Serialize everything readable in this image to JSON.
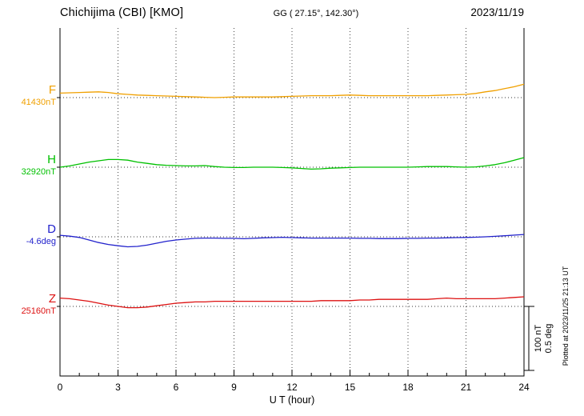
{
  "header": {
    "station": "Chichijima (CBI)  [KMO]",
    "coords": "GG ( 27.15°, 142.30°)",
    "date": "2023/11/19"
  },
  "axis": {
    "xlabel": "U T (hour)",
    "ticks": [
      0,
      3,
      6,
      9,
      12,
      15,
      18,
      21,
      24
    ],
    "xmin": 0,
    "xmax": 24
  },
  "components": [
    {
      "label": "F",
      "value_label": "41430nT",
      "color": "#f0a000",
      "unit": "nT"
    },
    {
      "label": "H",
      "value_label": "32920nT",
      "color": "#00c000",
      "unit": "nT"
    },
    {
      "label": "D",
      "value_label": "-4.6deg",
      "color": "#2222cc",
      "unit": "deg"
    },
    {
      "label": "Z",
      "value_label": "25160nT",
      "color": "#dd1111",
      "unit": "nT"
    }
  ],
  "scalebar": {
    "line1": "100 nT",
    "line2": "0.5 deg"
  },
  "plotted_at": "Plotted at 2023/11/25 21:13 UT",
  "chart_data": {
    "type": "line",
    "title": "Chichijima (CBI) [KMO] magnetogram",
    "subtitle": "GG ( 27.15°, 142.30° )  2023/11/19",
    "xlabel": "U T (hour)",
    "x_range": [
      0,
      24
    ],
    "x_step_hours": 0.5,
    "x_tick_labels": [
      0,
      3,
      6,
      9,
      12,
      15,
      18,
      21,
      24
    ],
    "grid": "vertical-dotted-every-3h, dotted baseline per component",
    "scale_per_division": {
      "nT": 100,
      "deg": 0.5
    },
    "series": [
      {
        "name": "F",
        "base": 41430,
        "unit": "nT",
        "color": "#f0a000",
        "offsets": [
          7,
          7.5,
          8,
          8.5,
          9,
          8,
          6,
          5,
          4,
          3.5,
          3,
          2.5,
          2,
          1.5,
          1,
          0.5,
          0,
          0.5,
          1,
          1,
          1,
          1,
          1,
          1.5,
          2,
          2.5,
          3,
          3,
          3,
          3.5,
          4,
          3.5,
          3,
          3,
          3,
          3,
          3,
          3,
          3,
          3.5,
          4,
          4.5,
          5,
          6.5,
          9,
          11,
          14,
          17,
          21
        ]
      },
      {
        "name": "H",
        "base": 32920,
        "unit": "nT",
        "color": "#00c000",
        "offsets": [
          0,
          2,
          5,
          8,
          10,
          12,
          12,
          11,
          8,
          6,
          4,
          3,
          2.5,
          2,
          2,
          2.5,
          1,
          0,
          -0.5,
          -0.5,
          0,
          0,
          0,
          -0.5,
          -1,
          -2,
          -3,
          -2.5,
          -1.5,
          -1,
          -0.5,
          0,
          0,
          0,
          0,
          0,
          0,
          0.5,
          1,
          1,
          1,
          0.5,
          0,
          0.5,
          2,
          4,
          7,
          11,
          15
        ]
      },
      {
        "name": "D",
        "base": -4.6,
        "unit": "deg",
        "color": "#2222cc",
        "offsets": [
          0.012,
          0.005,
          -0.005,
          -0.025,
          -0.045,
          -0.06,
          -0.07,
          -0.078,
          -0.075,
          -0.065,
          -0.05,
          -0.035,
          -0.025,
          -0.018,
          -0.012,
          -0.01,
          -0.01,
          -0.012,
          -0.012,
          -0.015,
          -0.012,
          -0.008,
          -0.006,
          -0.004,
          -0.006,
          -0.008,
          -0.01,
          -0.01,
          -0.01,
          -0.01,
          -0.01,
          -0.012,
          -0.012,
          -0.014,
          -0.014,
          -0.014,
          -0.012,
          -0.012,
          -0.01,
          -0.01,
          -0.008,
          -0.006,
          -0.005,
          -0.003,
          0,
          0.004,
          0.008,
          0.013,
          0.018
        ]
      },
      {
        "name": "Z",
        "base": 25160,
        "unit": "nT",
        "color": "#dd1111",
        "offsets": [
          13,
          12,
          10,
          8,
          5,
          2,
          0,
          -2,
          -2,
          -1,
          1,
          3,
          5,
          6,
          7,
          7,
          8,
          8,
          8,
          8,
          8,
          8,
          8,
          8,
          8,
          8,
          8,
          9,
          9,
          9,
          9,
          10,
          10,
          11,
          11,
          11,
          11,
          11,
          11,
          12,
          13,
          12,
          12,
          12,
          12,
          12,
          13,
          14,
          15
        ]
      }
    ]
  }
}
